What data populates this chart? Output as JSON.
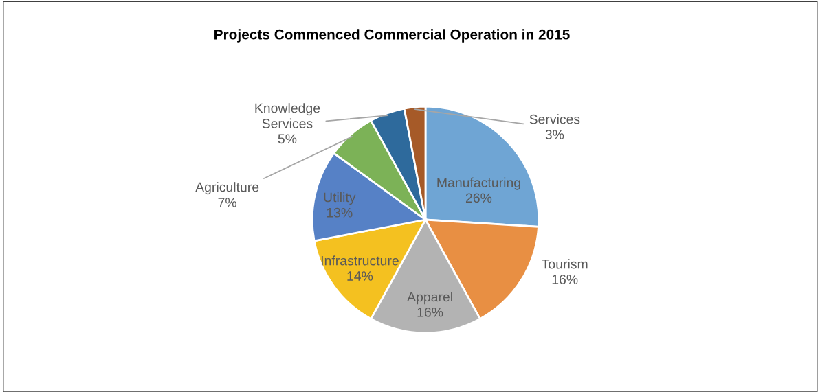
{
  "chart_data": {
    "type": "pie",
    "title": "Projects Commenced Commercial Operation in 2015",
    "categories": [
      "Manufacturing",
      "Tourism",
      "Apparel",
      "Infrastructure",
      "Utility",
      "Agriculture",
      "Knowledge\nServices",
      "Services"
    ],
    "values": [
      26,
      16,
      16,
      14,
      13,
      7,
      5,
      3
    ],
    "value_labels": [
      "26%",
      "16%",
      "16%",
      "14%",
      "13%",
      "7%",
      "5%",
      "3%"
    ],
    "colors": [
      "#6fa5d4",
      "#e88f43",
      "#b3b3b3",
      "#f4c120",
      "#5681c6",
      "#7cb257",
      "#2e6a9c",
      "#a65a28"
    ],
    "legend": false
  }
}
